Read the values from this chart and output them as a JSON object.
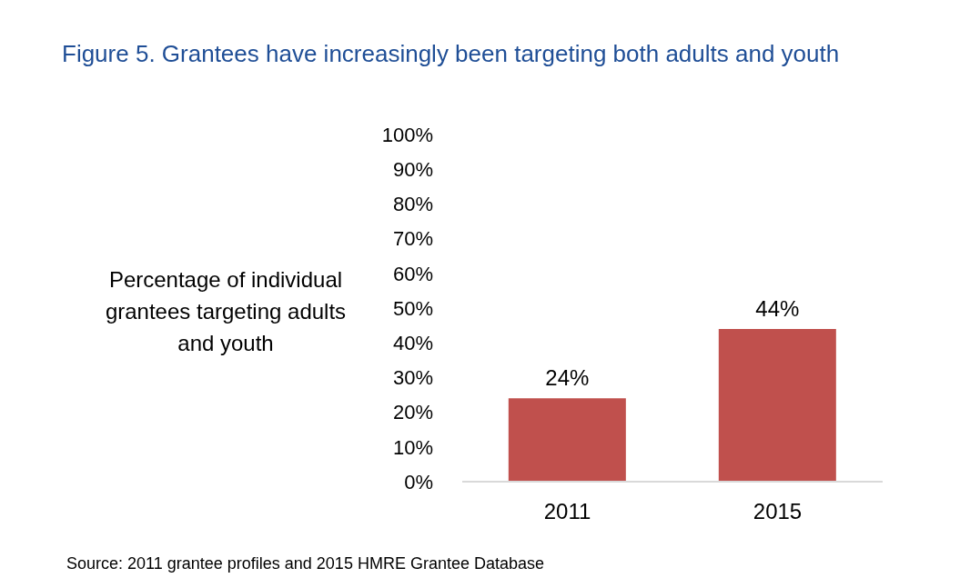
{
  "chart_data": {
    "type": "bar",
    "title": "Figure 5. Grantees have increasingly been targeting both adults and youth",
    "ylabel": "Percentage of individual grantees targeting adults and youth",
    "categories": [
      "2011",
      "2015"
    ],
    "values": [
      24,
      44
    ],
    "color": "#c0504d",
    "value_labels": [
      "24%",
      "44%"
    ],
    "ylim": [
      0,
      100
    ],
    "yticks": [
      {
        "value": 0,
        "label": "0%"
      },
      {
        "value": 10,
        "label": "10%"
      },
      {
        "value": 20,
        "label": "20%"
      },
      {
        "value": 30,
        "label": "30%"
      },
      {
        "value": 40,
        "label": "40%"
      },
      {
        "value": 50,
        "label": "50%"
      },
      {
        "value": 60,
        "label": "60%"
      },
      {
        "value": 70,
        "label": "70%"
      },
      {
        "value": 80,
        "label": "80%"
      },
      {
        "value": 90,
        "label": "90%"
      },
      {
        "value": 100,
        "label": "100%"
      }
    ],
    "grid": false,
    "legend": false,
    "annotations": [
      "Source: 2011 grantee profiles and 2015 HMRE Grantee Database"
    ]
  }
}
